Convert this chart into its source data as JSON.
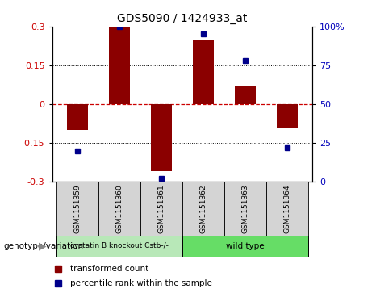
{
  "title": "GDS5090 / 1424933_at",
  "categories": [
    "GSM1151359",
    "GSM1151360",
    "GSM1151361",
    "GSM1151362",
    "GSM1151363",
    "GSM1151364"
  ],
  "red_values": [
    -0.1,
    0.3,
    -0.26,
    0.25,
    0.07,
    -0.09
  ],
  "blue_values": [
    20,
    100,
    2,
    95,
    78,
    22
  ],
  "group_labels": [
    "cystatin B knockout Cstb-/-",
    "wild type"
  ],
  "group_bg_colors": [
    "#c8f0c8",
    "#66dd66"
  ],
  "ylim_left": [
    -0.3,
    0.3
  ],
  "ylim_right": [
    0,
    100
  ],
  "yticks_left": [
    -0.3,
    -0.15,
    0,
    0.15,
    0.3
  ],
  "yticks_right": [
    0,
    25,
    50,
    75,
    100
  ],
  "bar_color": "#8B0000",
  "dot_color": "#00008B",
  "zero_line_color": "#cc0000",
  "bar_width": 0.5,
  "genotype_label": "genotype/variation",
  "legend_red": "transformed count",
  "legend_blue": "percentile rank within the sample"
}
